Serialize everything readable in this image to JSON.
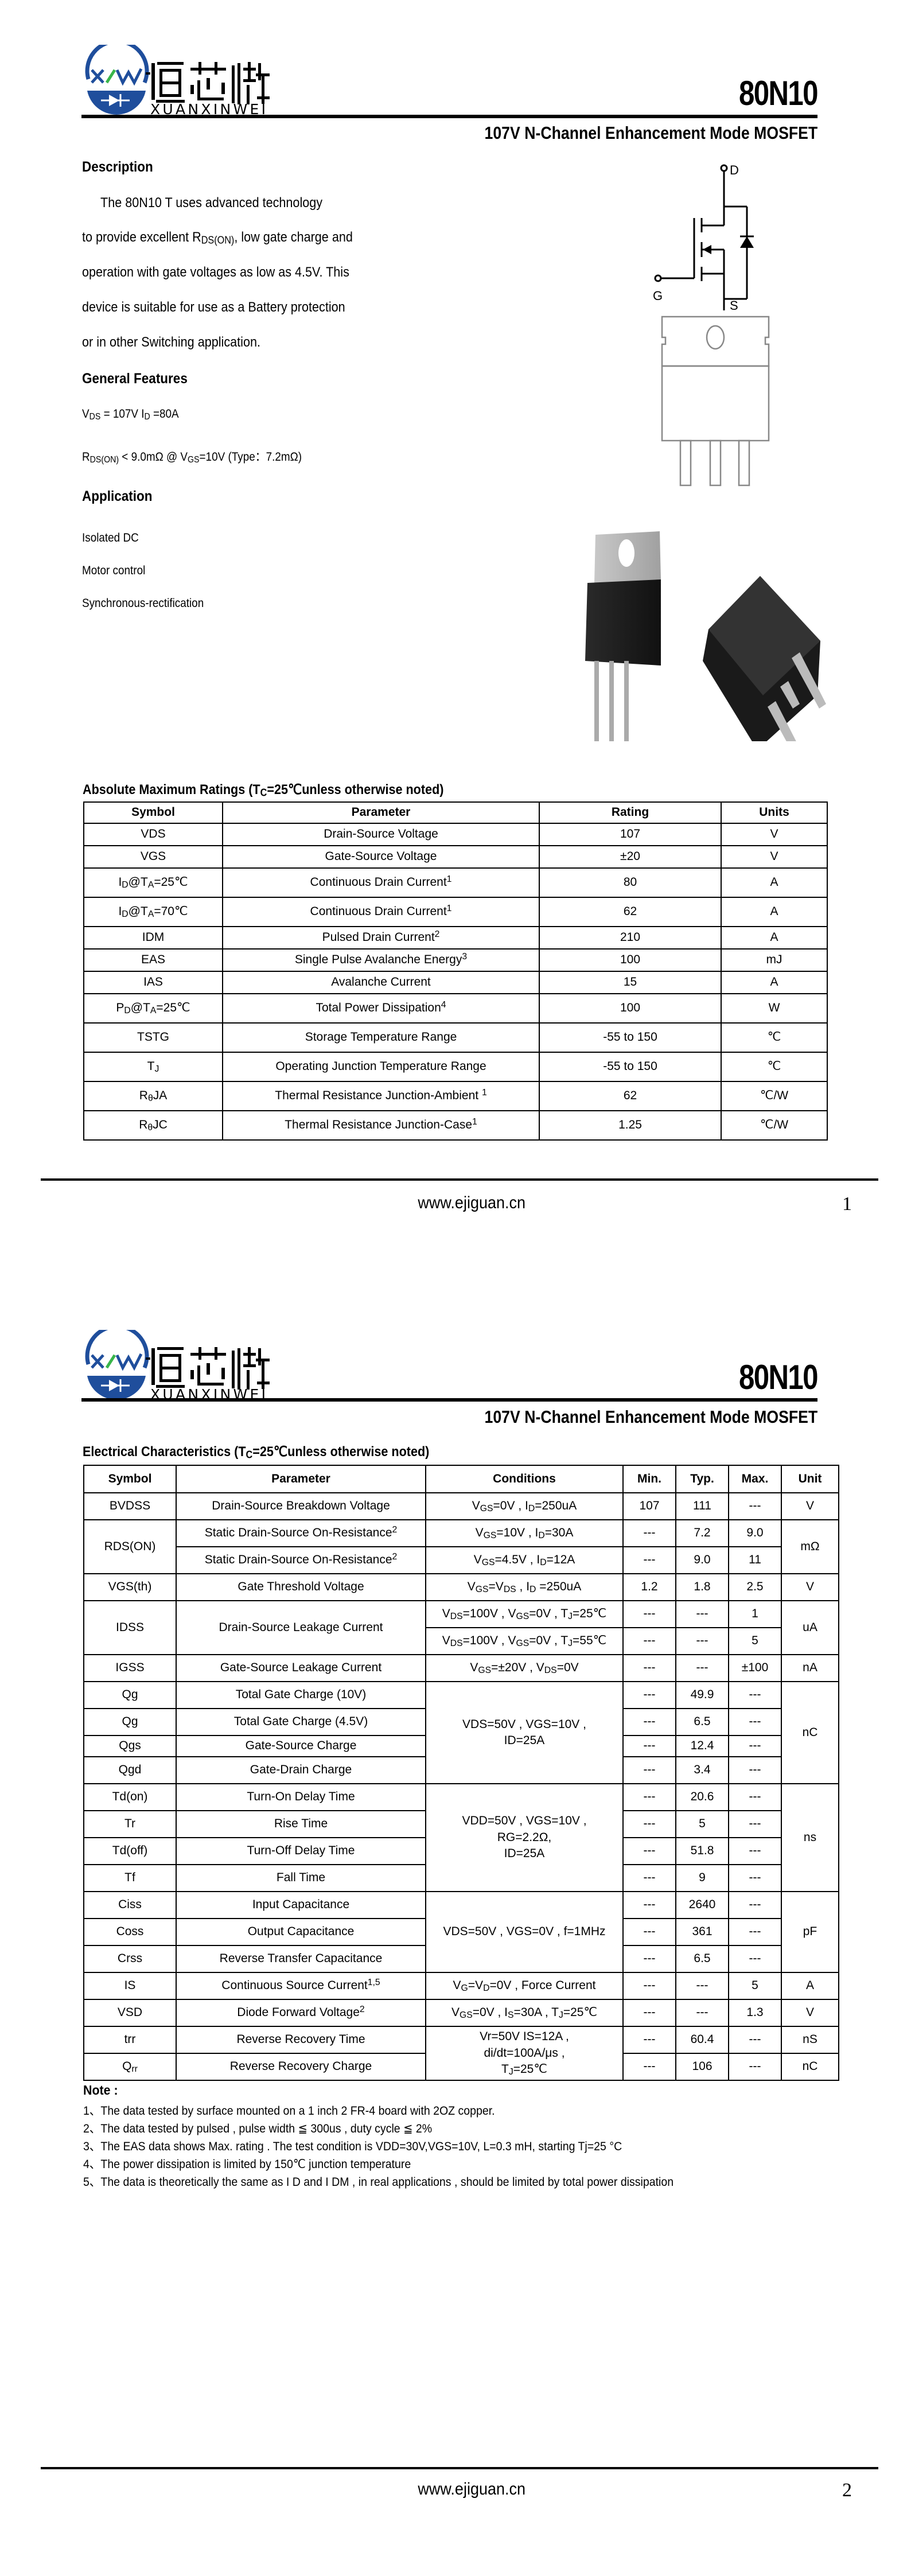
{
  "brand": {
    "logo_text_cn": "烜芯微",
    "logo_text_en": "XUANXINWEI",
    "logo_mark": "XW",
    "color_blue": "#1f4e9c",
    "color_green": "#39b54a"
  },
  "header": {
    "part_number": "80N10",
    "subtitle": "107V N-Channel Enhancement Mode MOSFET"
  },
  "page1": {
    "description": {
      "title": "Description",
      "lines": [
        "The    80N10   T uses advanced                technology",
        "to provide excellent R_DS(ON)_, low gate charge and",
        "operation with gate voltages as low as 4.5V. This",
        "device is suitable for use as a Battery protection",
        "or in other Switching application."
      ]
    },
    "features": {
      "title": "General Features",
      "lines": [
        "V_DS_ = 107V  I_D_ =80A",
        "R_DS(ON)_ < 9.0mΩ @ V_GS_=10V (Type：7.2mΩ)"
      ]
    },
    "application": {
      "title": "Application",
      "items": [
        "Isolated DC",
        "Motor control",
        "Synchronous-rectification"
      ]
    },
    "schematic": {
      "drain": "D",
      "gate": "G",
      "source": "S"
    },
    "abs_max": {
      "title": "Absolute Maximum Ratings (T_C_=25℃unless otherwise noted)",
      "headers": [
        "Symbol",
        "Parameter",
        "Rating",
        "Units"
      ],
      "rows": [
        [
          "VDS",
          "Drain-Source Voltage",
          "107",
          "V"
        ],
        [
          "VGS",
          "Gate-Source Voltage",
          "±20",
          "V"
        ],
        [
          "I_D_@T_A_=25℃",
          "Continuous Drain Current^1^",
          "80",
          "A"
        ],
        [
          "I_D_@T_A_=70℃",
          "Continuous Drain Current^1^",
          "62",
          "A"
        ],
        [
          "IDM",
          "Pulsed Drain Current^2^",
          "210",
          "A"
        ],
        [
          "EAS",
          "Single Pulse Avalanche Energy^3^",
          "100",
          "mJ"
        ],
        [
          "IAS",
          "Avalanche Current",
          "15",
          "A"
        ],
        [
          "P_D_@T_A_=25℃",
          "Total Power Dissipation^4^",
          "100",
          "W"
        ],
        [
          "TSTG",
          "Storage Temperature Range",
          "-55 to 150",
          "℃"
        ],
        [
          "T_J_",
          "Operating Junction Temperature Range",
          "-55 to 150",
          "℃"
        ],
        [
          "R_θ_JA",
          "Thermal Resistance Junction-Ambient ^1^",
          "62",
          "℃/W"
        ],
        [
          "R_θ_JC",
          "Thermal Resistance Junction-Case^1^",
          "1.25",
          "℃/W"
        ]
      ]
    },
    "footer": {
      "url": "www.ejiguan.cn",
      "page": "1"
    }
  },
  "page2": {
    "elec": {
      "title": "Electrical Characteristics (T_C_=25℃unless otherwise noted)",
      "headers": [
        "Symbol",
        "Parameter",
        "Conditions",
        "Min.",
        "Typ.",
        "Max.",
        "Unit"
      ],
      "rows": [
        [
          "BVDSS",
          "Drain-Source Breakdown Voltage",
          "V_GS_=0V , I_D_=250uA",
          "107",
          "111",
          "---",
          "V"
        ],
        [
          "RDS(ON)",
          "Static Drain-Source On-Resistance^2^",
          "V_GS_=10V , I_D_=30A",
          "---",
          "7.2",
          "9.0",
          "mΩ"
        ],
        [
          null,
          "Static Drain-Source On-Resistance^2^",
          "V_GS_=4.5V , I_D_=12A",
          "---",
          "9.0",
          "11",
          null
        ],
        [
          "VGS(th)",
          "Gate Threshold Voltage",
          "V_GS_=V_DS_ , I_D_ =250uA",
          "1.2",
          "1.8",
          "2.5",
          "V"
        ],
        [
          "IDSS",
          "Drain-Source Leakage Current",
          "V_DS_=100V , V_GS_=0V , T_J_=25℃",
          "---",
          "---",
          "1",
          "uA"
        ],
        [
          null,
          null,
          "V_DS_=100V , V_GS_=0V , T_J_=55℃",
          "---",
          "---",
          "5",
          null
        ],
        [
          "IGSS",
          "Gate-Source Leakage Current",
          "V_GS_=±20V , V_DS_=0V",
          "---",
          "---",
          "±100",
          "nA"
        ],
        [
          "Qg",
          "Total Gate Charge (10V)",
          "VDS=50V , VGS=10V ,\nID=25A",
          "---",
          "49.9",
          "---",
          "nC"
        ],
        [
          "Qg",
          "Total Gate Charge (4.5V)",
          null,
          "---",
          "6.5",
          "---",
          null
        ],
        [
          "Qgs",
          "Gate-Source Charge",
          null,
          "---",
          "12.4",
          "---",
          null
        ],
        [
          "Qgd",
          "Gate-Drain Charge",
          null,
          "---",
          "3.4",
          "---",
          null
        ],
        [
          "Td(on)",
          "Turn-On Delay Time",
          "VDD=50V , VGS=10V ,\nRG=2.2Ω,\nID=25A",
          "---",
          "20.6",
          "---",
          "ns"
        ],
        [
          "Tr",
          "Rise Time",
          null,
          "---",
          "5",
          "---",
          null
        ],
        [
          "Td(off)",
          "Turn-Off Delay Time",
          null,
          "---",
          "51.8",
          "---",
          null
        ],
        [
          "Tf",
          "Fall Time",
          null,
          "---",
          "9",
          "---",
          null
        ],
        [
          "Ciss",
          "Input Capacitance",
          "VDS=50V , VGS=0V , f=1MHz",
          "---",
          "2640",
          "---",
          "pF"
        ],
        [
          "Coss",
          "Output Capacitance",
          null,
          "---",
          "361",
          "---",
          null
        ],
        [
          "Crss",
          "Reverse Transfer Capacitance",
          null,
          "---",
          "6.5",
          "---",
          null
        ],
        [
          "IS",
          "Continuous Source Current^1,5^",
          "V_G_=V_D_=0V , Force Current",
          "---",
          "---",
          "5",
          "A"
        ],
        [
          "VSD",
          "Diode Forward Voltage^2^",
          "V_GS_=0V , I_S_=30A , T_J_=25℃",
          "---",
          "---",
          "1.3",
          "V"
        ],
        [
          "trr",
          "Reverse Recovery Time",
          "Vr=50V IS=12A ,\ndi/dt=100A/μs ,\nT_J_=25℃",
          "---",
          "60.4",
          "---",
          "nS"
        ],
        [
          "Q_rr_",
          "Reverse Recovery Charge",
          null,
          "---",
          "106",
          "---",
          "nC"
        ]
      ]
    },
    "notes": {
      "title": "Note :",
      "items": [
        "1、The data tested by surface mounted on a 1 inch 2  FR-4 board with 2OZ copper.",
        "2、The data tested by pulsed , pulse width ≦ 300us , duty cycle ≦ 2%",
        "3、The EAS data shows Max. rating . The test condition is VDD=30V,VGS=10V, L=0.3 mH, starting Tj=25 °C",
        "4、The power dissipation is limited by 150℃ junction temperature",
        "5、The data is theoretically the same as I D and I DM , in real applications , should be limited by total power dissipation"
      ]
    },
    "footer": {
      "url": "www.ejiguan.cn",
      "page": "2"
    }
  }
}
